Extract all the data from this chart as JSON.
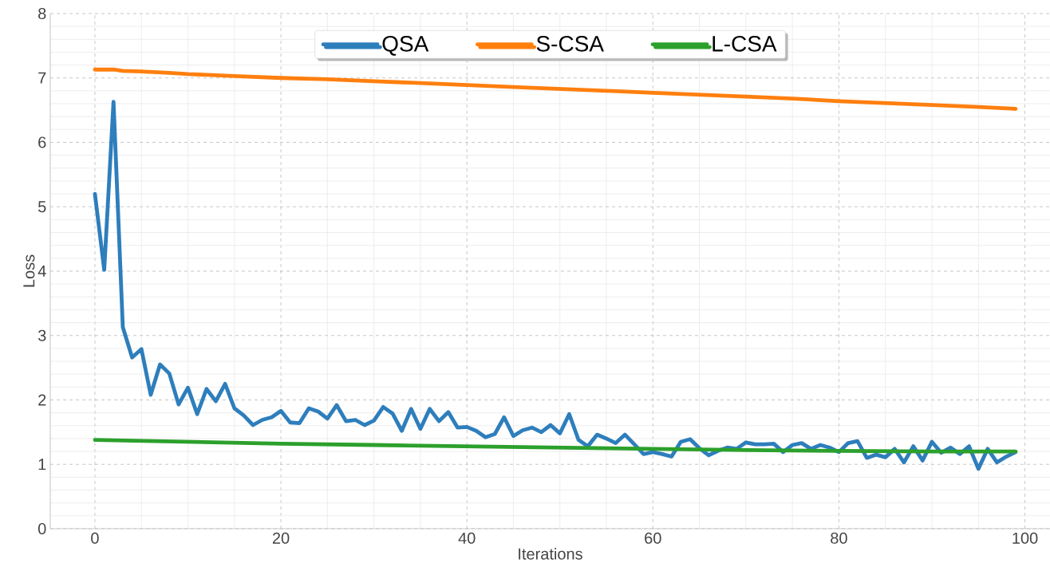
{
  "chart_data": {
    "type": "line",
    "xlabel": "Iterations",
    "ylabel": "Loss",
    "x": [
      0,
      1,
      2,
      3,
      4,
      5,
      6,
      7,
      8,
      9,
      10,
      11,
      12,
      13,
      14,
      15,
      16,
      17,
      18,
      19,
      20,
      21,
      22,
      23,
      24,
      25,
      26,
      27,
      28,
      29,
      30,
      31,
      32,
      33,
      34,
      35,
      36,
      37,
      38,
      39,
      40,
      41,
      42,
      43,
      44,
      45,
      46,
      47,
      48,
      49,
      50,
      51,
      52,
      53,
      54,
      55,
      56,
      57,
      58,
      59,
      60,
      61,
      62,
      63,
      64,
      65,
      66,
      67,
      68,
      69,
      70,
      71,
      72,
      73,
      74,
      75,
      76,
      77,
      78,
      79,
      80,
      81,
      82,
      83,
      84,
      85,
      86,
      87,
      88,
      89,
      90,
      91,
      92,
      93,
      94,
      95,
      96,
      97,
      98,
      99
    ],
    "series": [
      {
        "name": "QSA",
        "color": "#2e7ebc",
        "values": [
          5.2,
          4.02,
          6.63,
          3.13,
          2.66,
          2.79,
          2.08,
          2.55,
          2.41,
          1.93,
          2.19,
          1.78,
          2.17,
          1.98,
          2.25,
          1.87,
          1.76,
          1.61,
          1.69,
          1.73,
          1.83,
          1.65,
          1.64,
          1.87,
          1.82,
          1.71,
          1.92,
          1.67,
          1.69,
          1.61,
          1.68,
          1.89,
          1.79,
          1.52,
          1.86,
          1.55,
          1.86,
          1.67,
          1.81,
          1.57,
          1.58,
          1.52,
          1.42,
          1.47,
          1.73,
          1.44,
          1.53,
          1.57,
          1.5,
          1.61,
          1.48,
          1.78,
          1.38,
          1.28,
          1.46,
          1.4,
          1.33,
          1.46,
          1.31,
          1.16,
          1.19,
          1.16,
          1.12,
          1.35,
          1.39,
          1.25,
          1.14,
          1.21,
          1.26,
          1.24,
          1.34,
          1.31,
          1.31,
          1.32,
          1.19,
          1.3,
          1.33,
          1.24,
          1.3,
          1.26,
          1.19,
          1.33,
          1.36,
          1.1,
          1.15,
          1.11,
          1.24,
          1.03,
          1.28,
          1.06,
          1.35,
          1.18,
          1.26,
          1.16,
          1.28,
          0.93,
          1.24,
          1.03,
          1.12,
          1.19
        ]
      },
      {
        "name": "S-CSA",
        "color": "#ff7f0e",
        "x": [
          0,
          1,
          2,
          3,
          5,
          8,
          10,
          15,
          20,
          25,
          30,
          35,
          40,
          45,
          50,
          55,
          60,
          65,
          70,
          75,
          80,
          85,
          90,
          95,
          99
        ],
        "values": [
          7.13,
          7.13,
          7.13,
          7.11,
          7.1,
          7.08,
          7.06,
          7.03,
          7.0,
          6.98,
          6.95,
          6.92,
          6.89,
          6.86,
          6.83,
          6.8,
          6.77,
          6.74,
          6.71,
          6.68,
          6.64,
          6.61,
          6.58,
          6.55,
          6.52
        ]
      },
      {
        "name": "L-CSA",
        "color": "#2ca02c",
        "x": [
          0,
          10,
          20,
          30,
          40,
          50,
          60,
          70,
          80,
          90,
          99
        ],
        "values": [
          1.38,
          1.35,
          1.32,
          1.3,
          1.28,
          1.26,
          1.24,
          1.22,
          1.21,
          1.2,
          1.2
        ]
      }
    ],
    "xlim": [
      -4.8,
      102.7
    ],
    "ylim": [
      0,
      8
    ],
    "xticks": [
      0,
      20,
      40,
      60,
      80,
      100
    ],
    "yticks": [
      0,
      1,
      2,
      3,
      4,
      5,
      6,
      7,
      8
    ],
    "grid": true,
    "legend": "top"
  }
}
